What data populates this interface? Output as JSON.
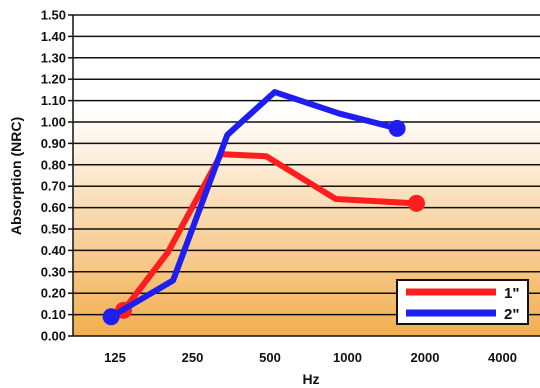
{
  "chart_data": {
    "type": "line",
    "xlabel": "Hz",
    "ylabel": "Absorption (NRC)",
    "categories": [
      "125",
      "250",
      "500",
      "1000",
      "2000",
      "4000"
    ],
    "ylim": [
      0,
      1.5
    ],
    "yticks": [
      "0.00",
      "0.10",
      "0.20",
      "0.30",
      "0.40",
      "0.50",
      "0.60",
      "0.70",
      "0.80",
      "0.90",
      "1.00",
      "1.10",
      "1.20",
      "1.30",
      "1.40",
      "1.50"
    ],
    "grid": true,
    "legend_position": "bottom-right",
    "background": {
      "type": "gradient",
      "top_color": "#ffffff",
      "bottom_color": "#f2ae4f"
    },
    "series": [
      {
        "name": "1\"",
        "color": "#ff1e1e",
        "points": [
          {
            "x": 1.11,
            "y": 0.12
          },
          {
            "x": 1.68,
            "y": 0.39
          },
          {
            "x": 2.37,
            "y": 0.85
          },
          {
            "x": 2.95,
            "y": 0.84
          },
          {
            "x": 3.85,
            "y": 0.64
          },
          {
            "x": 4.89,
            "y": 0.62
          }
        ],
        "markers": [
          0,
          5
        ]
      },
      {
        "name": "2\"",
        "color": "#1e1ef0",
        "points": [
          {
            "x": 0.95,
            "y": 0.09
          },
          {
            "x": 1.75,
            "y": 0.26
          },
          {
            "x": 2.45,
            "y": 0.94
          },
          {
            "x": 3.06,
            "y": 1.14
          },
          {
            "x": 3.89,
            "y": 1.04
          },
          {
            "x": 4.64,
            "y": 0.97
          }
        ],
        "markers": [
          0,
          5
        ]
      }
    ]
  }
}
